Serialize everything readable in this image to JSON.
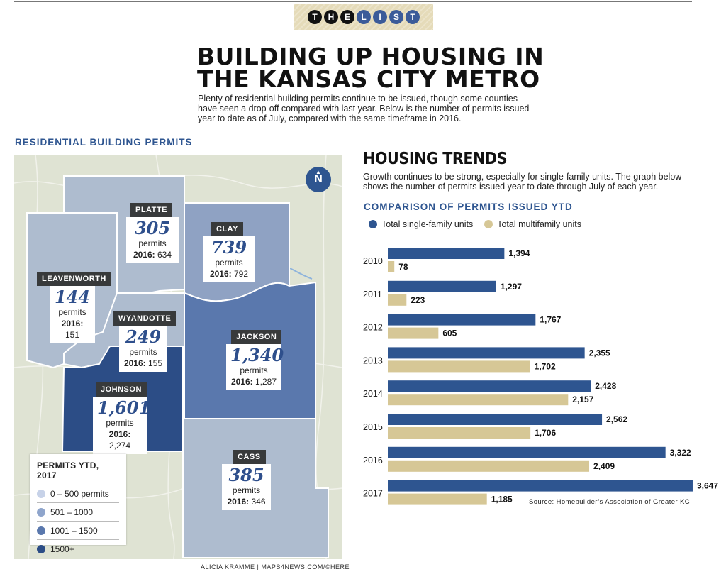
{
  "badge": [
    "T",
    "H",
    "E",
    "L",
    "I",
    "S",
    "T"
  ],
  "title_line1": "BUILDING UP HOUSING IN",
  "title_line2": "THE KANSAS CITY METRO",
  "intro": "Plenty of residential building permits continue to be issued, though some counties have seen a drop-off compared with last year. Below is the number of permits issued year to date as of July, compared with the same timeframe in 2016.",
  "map": {
    "heading": "RESIDENTIAL BUILDING PERMITS",
    "north": "N",
    "credit": "ALICIA KRAMME | MAPS4NEWS.COM/©HERE",
    "legend_title": "PERMITS YTD, 2017",
    "legend": [
      {
        "label": "0 – 500 permits",
        "color": "#c7d2e8"
      },
      {
        "label": "501 – 1000",
        "color": "#8fa5cc"
      },
      {
        "label": "1001 – 1500",
        "color": "#5a78ad"
      },
      {
        "label": "1500+",
        "color": "#2c4d86"
      }
    ],
    "counties": [
      {
        "name": "PLATTE",
        "value": "305",
        "unit": "permits",
        "prev_label": "2016:",
        "prev": "634"
      },
      {
        "name": "CLAY",
        "value": "739",
        "unit": "permits",
        "prev_label": "2016:",
        "prev": "792"
      },
      {
        "name": "LEAVENWORTH",
        "value": "144",
        "unit": "permits",
        "prev_label": "2016:",
        "prev": "151"
      },
      {
        "name": "WYANDOTTE",
        "value": "249",
        "unit": "permits",
        "prev_label": "2016:",
        "prev": "155"
      },
      {
        "name": "JACKSON",
        "value": "1,340",
        "unit": "permits",
        "prev_label": "2016:",
        "prev": "1,287"
      },
      {
        "name": "JOHNSON",
        "value": "1,601",
        "unit": "permits",
        "prev_label": "2016:",
        "prev": "2,274"
      },
      {
        "name": "CASS",
        "value": "385",
        "unit": "permits",
        "prev_label": "2016:",
        "prev": "346"
      }
    ]
  },
  "trends": {
    "title": "HOUSING TRENDS",
    "desc": "Growth continues to be strong, especially for single-family units. The graph below shows the number of permits issued year to date through July of each year.",
    "chart_heading": "COMPARISON OF PERMITS ISSUED YTD",
    "source": "Source: Homebuilder’s Association of Greater KC"
  },
  "chart_data": {
    "type": "bar",
    "orientation": "horizontal",
    "title": "COMPARISON OF PERMITS ISSUED YTD",
    "categories": [
      "2010",
      "2011",
      "2012",
      "2013",
      "2014",
      "2015",
      "2016",
      "2017"
    ],
    "series": [
      {
        "name": "Total single-family units",
        "color": "#2e5590",
        "values": [
          1394,
          1297,
          1767,
          2355,
          2428,
          2562,
          3322,
          3647
        ]
      },
      {
        "name": "Total multifamily units",
        "color": "#d6c796",
        "values": [
          78,
          223,
          605,
          1702,
          2157,
          1706,
          2409,
          1185
        ]
      }
    ],
    "data_labels": true,
    "legend_position": "top",
    "grid": false
  }
}
